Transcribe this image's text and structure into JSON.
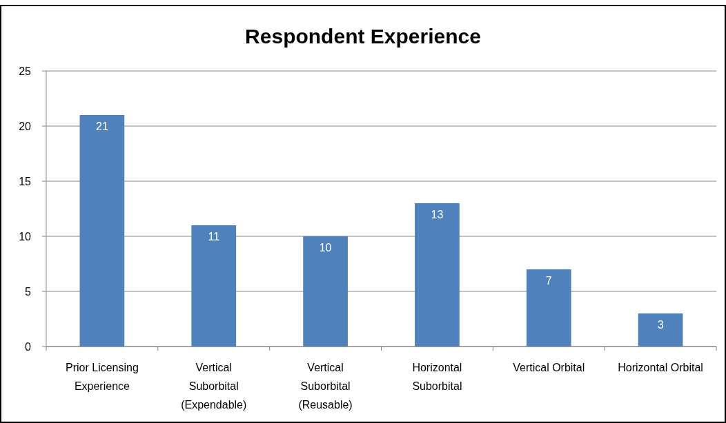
{
  "chart_data": {
    "type": "bar",
    "title": "Respondent Experience",
    "categories": [
      "Prior Licensing Experience",
      "Vertical Suborbital (Expendable)",
      "Vertical Suborbital (Reusable)",
      "Horizontal Suborbital",
      "Vertical Orbital",
      "Horizontal Orbital"
    ],
    "values": [
      21,
      11,
      10,
      13,
      7,
      3
    ],
    "color": "#4f81bd",
    "ylim": [
      0,
      25
    ],
    "yticks": [
      0,
      5,
      10,
      15,
      20,
      25
    ],
    "grid": "y",
    "data_labels": true
  }
}
